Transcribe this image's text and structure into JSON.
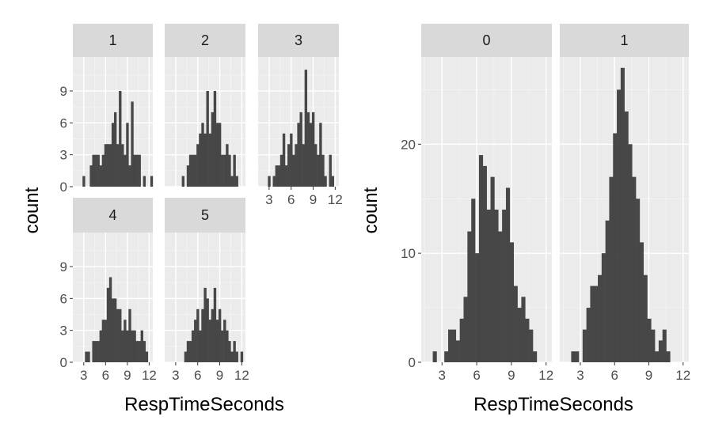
{
  "colors": {
    "panel_background": "#ebebeb",
    "grid_major": "#ffffff",
    "grid_minor": "#f5f5f5",
    "strip_background": "#d9d9d9",
    "bar_fill": "#474747",
    "tick_color": "#333333"
  },
  "chart_data": [
    {
      "type": "bar",
      "subtype": "faceted-histogram",
      "facet_variable_levels": [
        "1",
        "2",
        "3",
        "4",
        "5"
      ],
      "xlabel": "RespTimeSeconds",
      "ylabel": "count",
      "x_ticks": [
        3,
        6,
        9,
        12
      ],
      "y_ticks": [
        0,
        3,
        6,
        9
      ],
      "xlim": [
        1.5,
        12.5
      ],
      "ylim": [
        0,
        12.2
      ],
      "grid": true,
      "bin_start": 1.5,
      "bin_width": 0.333,
      "facets": [
        {
          "label": "1",
          "counts": [
            0,
            0,
            0,
            0,
            1,
            0,
            0,
            2,
            3,
            3,
            3,
            2,
            3,
            4,
            4,
            4,
            6,
            7,
            4,
            9,
            4,
            3,
            6,
            2,
            8,
            3,
            3,
            3,
            0,
            1,
            0,
            0,
            1
          ]
        },
        {
          "label": "2",
          "counts": [
            0,
            0,
            0,
            0,
            0,
            0,
            0,
            1,
            0,
            2,
            3,
            3,
            3,
            4,
            5,
            6,
            5,
            9,
            5,
            7,
            9,
            6,
            6,
            3,
            3,
            4,
            3,
            1,
            3,
            1,
            0,
            0,
            0
          ]
        },
        {
          "label": "3",
          "counts": [
            0,
            0,
            0,
            0,
            1,
            0,
            1,
            2,
            2,
            3,
            5,
            2,
            4,
            5,
            3,
            4,
            6,
            7,
            4,
            11,
            7,
            6,
            7,
            4,
            3,
            6,
            3,
            1,
            0,
            3,
            1,
            0,
            0
          ]
        },
        {
          "label": "4",
          "counts": [
            0,
            0,
            0,
            0,
            0,
            1,
            1,
            0,
            2,
            2,
            2,
            3,
            4,
            4,
            7,
            8,
            6,
            6,
            5,
            5,
            3,
            4,
            3,
            5,
            3,
            3,
            2,
            2,
            3,
            2,
            1,
            0,
            0
          ]
        },
        {
          "label": "5",
          "counts": [
            0,
            0,
            0,
            0,
            0,
            0,
            0,
            0,
            1,
            2,
            2,
            3,
            4,
            5,
            3,
            5,
            7,
            6,
            4,
            5,
            7,
            4,
            5,
            3,
            4,
            3,
            2,
            1,
            2,
            1,
            0,
            1,
            0
          ]
        }
      ]
    },
    {
      "type": "bar",
      "subtype": "faceted-histogram",
      "facet_variable_levels": [
        "0",
        "1"
      ],
      "xlabel": "RespTimeSeconds",
      "ylabel": "count",
      "x_ticks": [
        3,
        6,
        9,
        12
      ],
      "y_ticks": [
        0,
        10,
        20
      ],
      "xlim": [
        1.2,
        12.5
      ],
      "ylim": [
        0,
        28
      ],
      "grid": true,
      "bin_start": 1.2,
      "bin_width": 0.333,
      "facets": [
        {
          "label": "0",
          "counts": [
            0,
            0,
            0,
            1,
            0,
            0,
            1,
            3,
            3,
            2,
            4,
            6,
            12,
            15,
            10,
            19,
            18,
            14,
            17,
            14,
            12,
            14,
            16,
            11,
            7,
            5,
            6,
            4,
            3,
            1,
            0,
            0,
            0,
            0
          ]
        },
        {
          "label": "1",
          "counts": [
            0,
            0,
            0,
            1,
            1,
            0,
            3,
            5,
            7,
            7,
            8,
            10,
            13,
            17,
            21,
            25,
            27,
            23,
            20,
            17,
            15,
            11,
            8,
            4,
            3,
            1,
            2,
            3,
            1,
            0,
            0,
            0,
            0,
            0
          ]
        }
      ]
    }
  ]
}
